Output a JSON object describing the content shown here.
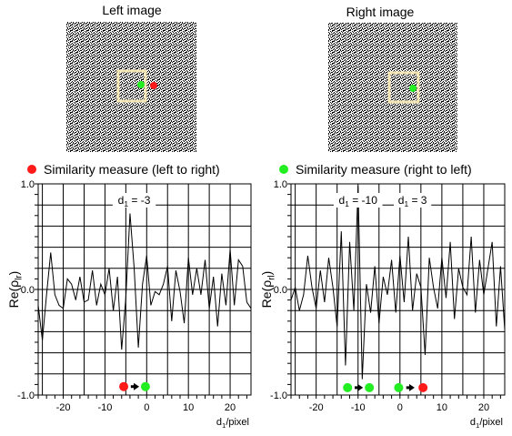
{
  "colors": {
    "red": "#ff1a1a",
    "green": "#22ee22",
    "window": "#f4e6b4",
    "black": "#000000",
    "white": "#ffffff"
  },
  "panels": {
    "left_image": {
      "title": "Left image",
      "window_color": "#f4e6b4",
      "dot_colors": [
        "#22ee22",
        "#ff1a1a"
      ]
    },
    "right_image": {
      "title": "Right image",
      "window_color": "#f4e6b4",
      "dot_colors": [
        "#22ee22"
      ]
    }
  },
  "legends": {
    "left": {
      "text": "Similarity measure (left to right)",
      "marker_color": "#ff1a1a"
    },
    "right": {
      "text": "Similarity measure (right to left)",
      "marker_color": "#22ee22"
    }
  },
  "chart_data": [
    {
      "type": "line",
      "ylabel": "Re(ρlr)",
      "xlabel": "d1/pixel",
      "xlim": [
        -26,
        25
      ],
      "ylim": [
        -1.0,
        1.0
      ],
      "xticks": [
        -20,
        -10,
        0,
        10,
        20
      ],
      "yticks": [
        -1.0,
        0.0,
        1.0
      ],
      "ytick_labels": [
        "-1.0",
        "0.0",
        "1.0"
      ],
      "grid": true,
      "series": [
        {
          "x": [
            -26,
            -25,
            -24,
            -23,
            -22,
            -21,
            -20,
            -19,
            -18,
            -17,
            -16,
            -15,
            -14,
            -13,
            -12,
            -11,
            -10,
            -9,
            -8,
            -7,
            -6,
            -5,
            -4,
            -3,
            -2,
            -1,
            0,
            1,
            2,
            3,
            4,
            5,
            6,
            7,
            8,
            9,
            10,
            11,
            12,
            13,
            14,
            15,
            16,
            17,
            18,
            19,
            20,
            21,
            22,
            23,
            24,
            25
          ],
          "y": [
            -0.15,
            -0.48,
            -0.05,
            0.35,
            -0.05,
            -0.15,
            -0.18,
            0.1,
            0.05,
            -0.1,
            0.12,
            -0.12,
            -0.1,
            0.18,
            -0.15,
            0.05,
            -0.05,
            0.2,
            -0.2,
            0.12,
            -0.57,
            -0.08,
            0.72,
            0.2,
            -0.55,
            0.05,
            0.32,
            -0.15,
            -0.02,
            -0.05,
            0.05,
            0.22,
            -0.3,
            0.18,
            -0.02,
            -0.32,
            0.3,
            -0.05,
            0.2,
            -0.05,
            0.28,
            -0.18,
            0.12,
            -0.35,
            0.15,
            -0.15,
            0.38,
            -0.15,
            0.28,
            0.22,
            -0.12,
            -0.18
          ]
        }
      ],
      "annotations": [
        {
          "text": "d1 = -3",
          "x": -3
        }
      ],
      "markers": [
        {
          "x": -5.5,
          "y": -0.92,
          "color": "#ff1a1a"
        },
        {
          "x": -0.3,
          "y": -0.92,
          "color": "#22ee22"
        }
      ],
      "arrows": [
        {
          "from": -3.8,
          "to": -1.8,
          "y": -0.92
        }
      ]
    },
    {
      "type": "line",
      "ylabel": "Re(ρrl)",
      "xlabel": "d1/pixel",
      "xlim": [
        -26,
        25
      ],
      "ylim": [
        -1.0,
        1.0
      ],
      "xticks": [
        -20,
        -10,
        0,
        10,
        20
      ],
      "yticks": [
        -1.0,
        0.0,
        1.0
      ],
      "ytick_labels": [
        "-1.0",
        "0.0",
        "1.0"
      ],
      "grid": true,
      "series": [
        {
          "x": [
            -26,
            -25,
            -24,
            -23,
            -22,
            -21,
            -20,
            -19,
            -18,
            -17,
            -16,
            -15,
            -14,
            -13,
            -12,
            -11,
            -10,
            -9,
            -8,
            -7,
            -6,
            -5,
            -4,
            -3,
            -2,
            -1,
            0,
            1,
            2,
            3,
            4,
            5,
            6,
            7,
            8,
            9,
            10,
            11,
            12,
            13,
            14,
            15,
            16,
            17,
            18,
            19,
            20,
            21,
            22,
            23,
            24,
            25
          ],
          "y": [
            -0.1,
            0.02,
            -0.2,
            -0.05,
            0.32,
            0.02,
            -0.18,
            0.18,
            -0.12,
            0.3,
            0.02,
            -0.35,
            0.55,
            -0.72,
            0.45,
            -0.2,
            0.98,
            -0.85,
            0.05,
            -0.22,
            0.22,
            -0.32,
            0.12,
            -0.05,
            0.28,
            -0.22,
            0.32,
            -0.12,
            0.5,
            -0.2,
            0.15,
            0.02,
            -0.62,
            0.3,
            0.02,
            -0.18,
            0.3,
            -0.08,
            0.45,
            -0.28,
            0.2,
            0.02,
            -0.05,
            0.5,
            -0.22,
            0.28,
            -0.05,
            0.2,
            0.45,
            -0.35,
            0.22,
            -0.38
          ]
        }
      ],
      "annotations": [
        {
          "text": "d1 = -10",
          "x": -10
        },
        {
          "text": "d1 = 3",
          "x": 3
        }
      ],
      "markers": [
        {
          "x": -12.5,
          "y": -0.93,
          "color": "#22ee22"
        },
        {
          "x": -7.3,
          "y": -0.93,
          "color": "#22ee22"
        },
        {
          "x": -0.3,
          "y": -0.93,
          "color": "#22ee22"
        },
        {
          "x": 5.5,
          "y": -0.93,
          "color": "#ff1a1a"
        }
      ],
      "arrows": [
        {
          "from": -10.8,
          "to": -8.8,
          "y": -0.93
        },
        {
          "from": 1.5,
          "to": 3.5,
          "y": -0.93
        }
      ]
    }
  ]
}
